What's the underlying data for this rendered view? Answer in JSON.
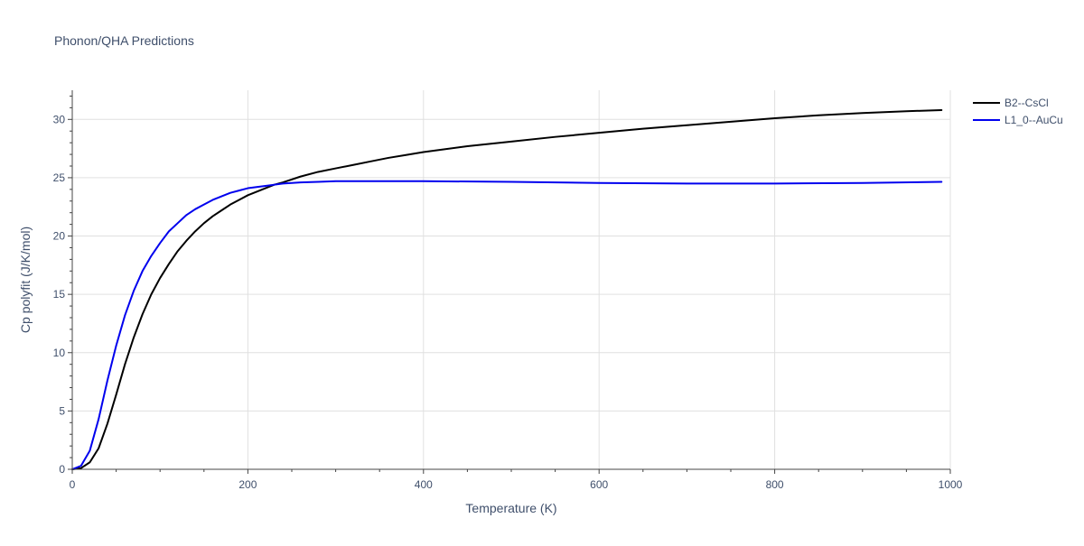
{
  "chart_data": {
    "type": "line",
    "title": "Phonon/QHA Predictions",
    "xlabel": "Temperature (K)",
    "ylabel": "Cp polyfit (J/K/mol)",
    "xlim": [
      0,
      1000
    ],
    "ylim": [
      0,
      32.5
    ],
    "xticks": [
      0,
      200,
      400,
      600,
      800,
      1000
    ],
    "yticks": [
      0,
      5,
      10,
      15,
      20,
      25,
      30
    ],
    "grid": true,
    "legend_position": "top-right",
    "series": [
      {
        "name": "B2--CsCl",
        "color": "#000000",
        "x": [
          0,
          10,
          20,
          30,
          40,
          50,
          60,
          70,
          80,
          90,
          100,
          110,
          120,
          130,
          140,
          150,
          160,
          170,
          180,
          190,
          200,
          210,
          220,
          230,
          240,
          260,
          280,
          300,
          320,
          340,
          360,
          380,
          400,
          450,
          500,
          550,
          600,
          650,
          700,
          750,
          800,
          850,
          900,
          950,
          990
        ],
        "y": [
          0,
          0.1,
          0.6,
          1.8,
          3.9,
          6.4,
          9.0,
          11.3,
          13.3,
          15.0,
          16.4,
          17.6,
          18.7,
          19.6,
          20.4,
          21.1,
          21.7,
          22.2,
          22.7,
          23.1,
          23.5,
          23.8,
          24.1,
          24.4,
          24.6,
          25.1,
          25.5,
          25.8,
          26.1,
          26.4,
          26.7,
          26.95,
          27.2,
          27.7,
          28.1,
          28.5,
          28.85,
          29.2,
          29.5,
          29.8,
          30.1,
          30.35,
          30.55,
          30.7,
          30.8
        ]
      },
      {
        "name": "L1_0--AuCu",
        "color": "#0000ee",
        "x": [
          0,
          10,
          20,
          30,
          40,
          50,
          60,
          70,
          80,
          90,
          100,
          110,
          120,
          130,
          140,
          150,
          160,
          170,
          180,
          190,
          200,
          210,
          220,
          230,
          240,
          260,
          280,
          300,
          350,
          400,
          500,
          600,
          700,
          800,
          900,
          990
        ],
        "y": [
          0,
          0.3,
          1.6,
          4.3,
          7.6,
          10.6,
          13.2,
          15.3,
          17.0,
          18.3,
          19.4,
          20.4,
          21.1,
          21.8,
          22.3,
          22.7,
          23.1,
          23.4,
          23.7,
          23.9,
          24.1,
          24.2,
          24.3,
          24.4,
          24.5,
          24.6,
          24.65,
          24.7,
          24.7,
          24.7,
          24.65,
          24.55,
          24.5,
          24.5,
          24.55,
          24.65
        ]
      }
    ]
  }
}
